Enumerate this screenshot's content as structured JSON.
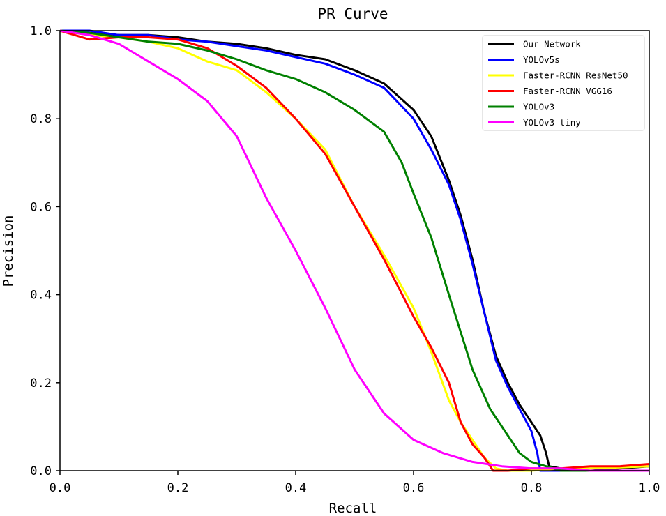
{
  "chart_data": {
    "type": "line",
    "title": "PR Curve",
    "xlabel": "Recall",
    "ylabel": "Precision",
    "xlim": [
      0.0,
      1.0
    ],
    "ylim": [
      0.0,
      1.0
    ],
    "xticks": [
      "0.0",
      "0.2",
      "0.4",
      "0.6",
      "0.8",
      "1.0"
    ],
    "yticks": [
      "0.0",
      "0.2",
      "0.4",
      "0.6",
      "0.8",
      "1.0"
    ],
    "grid": false,
    "legend_position": "top-right",
    "series": [
      {
        "name": "Our Network",
        "color": "#000000",
        "points": [
          [
            0.0,
            1.0
          ],
          [
            0.05,
            0.995
          ],
          [
            0.1,
            0.99
          ],
          [
            0.15,
            0.99
          ],
          [
            0.2,
            0.985
          ],
          [
            0.25,
            0.975
          ],
          [
            0.3,
            0.97
          ],
          [
            0.35,
            0.96
          ],
          [
            0.4,
            0.945
          ],
          [
            0.45,
            0.935
          ],
          [
            0.5,
            0.91
          ],
          [
            0.55,
            0.88
          ],
          [
            0.6,
            0.82
          ],
          [
            0.63,
            0.76
          ],
          [
            0.66,
            0.66
          ],
          [
            0.68,
            0.58
          ],
          [
            0.7,
            0.48
          ],
          [
            0.72,
            0.36
          ],
          [
            0.74,
            0.26
          ],
          [
            0.76,
            0.2
          ],
          [
            0.78,
            0.15
          ],
          [
            0.8,
            0.11
          ],
          [
            0.815,
            0.08
          ],
          [
            0.825,
            0.04
          ],
          [
            0.83,
            0.01
          ],
          [
            0.85,
            0.005
          ],
          [
            0.9,
            0.0
          ],
          [
            0.95,
            0.005
          ],
          [
            1.0,
            0.01
          ]
        ]
      },
      {
        "name": "YOLOv5s",
        "color": "#0000ff",
        "points": [
          [
            0.0,
            1.0
          ],
          [
            0.05,
            1.0
          ],
          [
            0.1,
            0.99
          ],
          [
            0.15,
            0.99
          ],
          [
            0.2,
            0.98
          ],
          [
            0.25,
            0.975
          ],
          [
            0.3,
            0.965
          ],
          [
            0.35,
            0.955
          ],
          [
            0.4,
            0.94
          ],
          [
            0.45,
            0.925
          ],
          [
            0.5,
            0.9
          ],
          [
            0.55,
            0.87
          ],
          [
            0.6,
            0.8
          ],
          [
            0.63,
            0.73
          ],
          [
            0.66,
            0.65
          ],
          [
            0.68,
            0.57
          ],
          [
            0.7,
            0.47
          ],
          [
            0.72,
            0.36
          ],
          [
            0.74,
            0.25
          ],
          [
            0.76,
            0.19
          ],
          [
            0.78,
            0.14
          ],
          [
            0.8,
            0.09
          ],
          [
            0.81,
            0.04
          ],
          [
            0.815,
            0.0
          ],
          [
            0.85,
            0.0
          ],
          [
            0.9,
            0.0
          ],
          [
            1.0,
            0.0
          ]
        ]
      },
      {
        "name": "Faster-RCNN ResNet50",
        "color": "#ffff00",
        "points": [
          [
            0.0,
            1.0
          ],
          [
            0.05,
            0.99
          ],
          [
            0.1,
            0.985
          ],
          [
            0.15,
            0.975
          ],
          [
            0.2,
            0.96
          ],
          [
            0.25,
            0.93
          ],
          [
            0.3,
            0.91
          ],
          [
            0.35,
            0.86
          ],
          [
            0.4,
            0.8
          ],
          [
            0.45,
            0.73
          ],
          [
            0.5,
            0.6
          ],
          [
            0.55,
            0.49
          ],
          [
            0.6,
            0.37
          ],
          [
            0.63,
            0.27
          ],
          [
            0.66,
            0.16
          ],
          [
            0.68,
            0.11
          ],
          [
            0.7,
            0.07
          ],
          [
            0.72,
            0.03
          ],
          [
            0.74,
            0.005
          ],
          [
            0.76,
            0.0
          ],
          [
            0.8,
            0.0
          ],
          [
            0.85,
            0.005
          ],
          [
            0.9,
            0.005
          ],
          [
            1.0,
            0.01
          ]
        ]
      },
      {
        "name": "Faster-RCNN VGG16",
        "color": "#ff0000",
        "points": [
          [
            0.0,
            1.0
          ],
          [
            0.05,
            0.98
          ],
          [
            0.1,
            0.985
          ],
          [
            0.15,
            0.985
          ],
          [
            0.2,
            0.98
          ],
          [
            0.25,
            0.96
          ],
          [
            0.3,
            0.92
          ],
          [
            0.35,
            0.87
          ],
          [
            0.4,
            0.8
          ],
          [
            0.45,
            0.72
          ],
          [
            0.5,
            0.6
          ],
          [
            0.55,
            0.48
          ],
          [
            0.6,
            0.35
          ],
          [
            0.63,
            0.28
          ],
          [
            0.66,
            0.2
          ],
          [
            0.68,
            0.11
          ],
          [
            0.7,
            0.06
          ],
          [
            0.72,
            0.03
          ],
          [
            0.735,
            0.0
          ],
          [
            0.76,
            0.0
          ],
          [
            0.8,
            0.005
          ],
          [
            0.85,
            0.005
          ],
          [
            0.9,
            0.01
          ],
          [
            0.95,
            0.01
          ],
          [
            1.0,
            0.015
          ]
        ]
      },
      {
        "name": "YOLOv3",
        "color": "#008000",
        "points": [
          [
            0.0,
            1.0
          ],
          [
            0.05,
            0.995
          ],
          [
            0.1,
            0.985
          ],
          [
            0.15,
            0.975
          ],
          [
            0.2,
            0.97
          ],
          [
            0.25,
            0.955
          ],
          [
            0.3,
            0.935
          ],
          [
            0.35,
            0.91
          ],
          [
            0.4,
            0.89
          ],
          [
            0.45,
            0.86
          ],
          [
            0.5,
            0.82
          ],
          [
            0.55,
            0.77
          ],
          [
            0.58,
            0.7
          ],
          [
            0.6,
            0.63
          ],
          [
            0.63,
            0.53
          ],
          [
            0.66,
            0.4
          ],
          [
            0.7,
            0.23
          ],
          [
            0.73,
            0.14
          ],
          [
            0.76,
            0.08
          ],
          [
            0.78,
            0.04
          ],
          [
            0.8,
            0.02
          ],
          [
            0.85,
            0.0
          ],
          [
            0.9,
            0.0
          ],
          [
            1.0,
            0.0
          ]
        ]
      },
      {
        "name": "YOLOv3-tiny",
        "color": "#ff00ff",
        "points": [
          [
            0.0,
            1.0
          ],
          [
            0.05,
            0.99
          ],
          [
            0.1,
            0.97
          ],
          [
            0.15,
            0.93
          ],
          [
            0.2,
            0.89
          ],
          [
            0.25,
            0.84
          ],
          [
            0.3,
            0.76
          ],
          [
            0.35,
            0.62
          ],
          [
            0.4,
            0.5
          ],
          [
            0.45,
            0.37
          ],
          [
            0.5,
            0.23
          ],
          [
            0.55,
            0.13
          ],
          [
            0.6,
            0.07
          ],
          [
            0.65,
            0.04
          ],
          [
            0.7,
            0.02
          ],
          [
            0.75,
            0.01
          ],
          [
            0.8,
            0.005
          ],
          [
            0.85,
            0.005
          ],
          [
            0.9,
            0.0
          ],
          [
            0.95,
            0.0
          ],
          [
            1.0,
            0.0
          ]
        ]
      }
    ]
  }
}
